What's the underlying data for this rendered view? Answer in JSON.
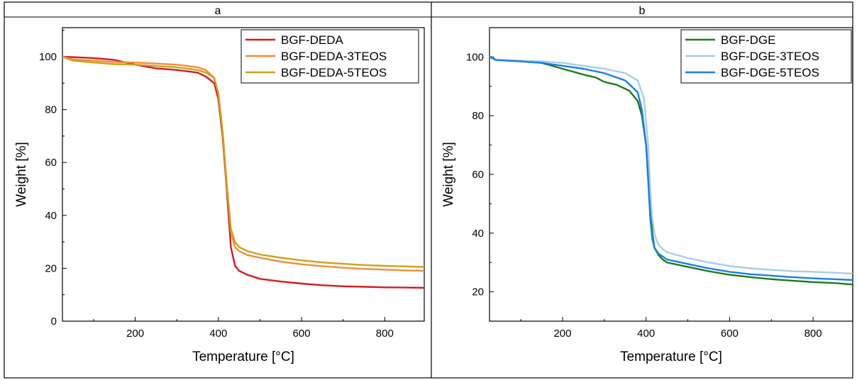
{
  "chart_data": [
    {
      "type": "line",
      "title": "a",
      "xlabel": "Temperature [°C]",
      "ylabel": "Weight [%]",
      "xlim": [
        25,
        895
      ],
      "ylim": [
        0,
        111
      ],
      "xticks": [
        200,
        400,
        600,
        800
      ],
      "yticks": [
        0,
        20,
        40,
        60,
        80,
        100
      ],
      "legend_position": "top-right",
      "series": [
        {
          "name": "BGF-DEDA",
          "color": "#d71920",
          "x": [
            25,
            100,
            150,
            200,
            250,
            300,
            350,
            370,
            390,
            400,
            410,
            420,
            430,
            440,
            450,
            470,
            500,
            550,
            600,
            650,
            700,
            750,
            800,
            850,
            895
          ],
          "y": [
            100,
            99.5,
            98.8,
            97.0,
            95.6,
            95.0,
            94.0,
            92.5,
            90.0,
            84.0,
            70.0,
            50.0,
            28.0,
            21.0,
            19.0,
            17.5,
            16.0,
            15.0,
            14.2,
            13.6,
            13.2,
            13.0,
            12.8,
            12.7,
            12.6
          ]
        },
        {
          "name": "BGF-DEDA-3TEOS",
          "color": "#f28c3a",
          "x": [
            25,
            50,
            100,
            150,
            200,
            250,
            300,
            350,
            370,
            390,
            400,
            410,
            420,
            430,
            440,
            450,
            470,
            500,
            550,
            600,
            650,
            700,
            750,
            800,
            850,
            895
          ],
          "y": [
            100,
            99.0,
            98.5,
            98.0,
            97.8,
            97.4,
            97.0,
            96.0,
            95.0,
            92.0,
            86.0,
            72.0,
            52.0,
            34.0,
            28.0,
            26.5,
            25.0,
            24.0,
            22.5,
            21.5,
            20.8,
            20.2,
            19.8,
            19.5,
            19.2,
            19.0
          ]
        },
        {
          "name": "BGF-DEDA-5TEOS",
          "color": "#c9a41a",
          "x": [
            25,
            50,
            100,
            150,
            200,
            250,
            300,
            350,
            370,
            390,
            400,
            410,
            420,
            430,
            440,
            450,
            470,
            500,
            550,
            600,
            650,
            700,
            750,
            800,
            850,
            895
          ],
          "y": [
            100,
            98.5,
            97.8,
            97.2,
            97.0,
            96.5,
            96.0,
            95.0,
            94.0,
            92.0,
            86.0,
            72.0,
            52.0,
            35.0,
            30.0,
            28.0,
            26.5,
            25.2,
            24.0,
            23.0,
            22.2,
            21.7,
            21.2,
            20.9,
            20.7,
            20.5
          ]
        }
      ]
    },
    {
      "type": "line",
      "title": "b",
      "xlabel": "Temperature [°C]",
      "ylabel": "Weight [%]",
      "xlim": [
        25,
        895
      ],
      "ylim": [
        10,
        110
      ],
      "xticks": [
        200,
        400,
        600,
        800
      ],
      "yticks": [
        20,
        40,
        60,
        80,
        100
      ],
      "legend_position": "top-right",
      "series": [
        {
          "name": "BGF-DGE",
          "color": "#1f7a1f",
          "x": [
            25,
            30,
            40,
            100,
            150,
            200,
            250,
            280,
            300,
            330,
            360,
            380,
            390,
            400,
            405,
            410,
            415,
            420,
            430,
            440,
            450,
            500,
            550,
            600,
            650,
            700,
            750,
            800,
            850,
            895
          ],
          "y": [
            100,
            100,
            99.0,
            98.5,
            98.0,
            96.0,
            94.0,
            93.0,
            91.5,
            90.5,
            88.5,
            85.0,
            80.0,
            70.0,
            60.0,
            50.0,
            40.0,
            35.0,
            32.5,
            31.0,
            30.0,
            28.5,
            27.0,
            25.8,
            25.0,
            24.3,
            23.8,
            23.3,
            23.0,
            22.5
          ]
        },
        {
          "name": "BGF-DGE-3TEOS",
          "color": "#a9cde6",
          "x": [
            25,
            30,
            40,
            100,
            150,
            200,
            250,
            300,
            350,
            380,
            395,
            405,
            410,
            415,
            420,
            425,
            430,
            440,
            450,
            500,
            550,
            600,
            650,
            700,
            750,
            800,
            850,
            895
          ],
          "y": [
            100,
            99.5,
            99.0,
            98.8,
            98.5,
            98.0,
            97.0,
            96.0,
            94.5,
            92.0,
            86.0,
            70.0,
            55.0,
            45.0,
            40.0,
            37.5,
            36.0,
            34.5,
            33.5,
            31.5,
            30.0,
            28.8,
            28.0,
            27.5,
            27.0,
            26.8,
            26.5,
            26.2
          ]
        },
        {
          "name": "BGF-DGE-5TEOS",
          "color": "#1a7fe6",
          "x": [
            25,
            30,
            40,
            100,
            150,
            200,
            250,
            300,
            350,
            380,
            390,
            400,
            405,
            410,
            415,
            420,
            430,
            440,
            450,
            500,
            550,
            600,
            650,
            700,
            750,
            800,
            850,
            895
          ],
          "y": [
            100,
            99.8,
            99.0,
            98.5,
            98.0,
            97.0,
            96.0,
            94.5,
            92.0,
            88.0,
            82.0,
            70.0,
            58.0,
            45.0,
            38.0,
            35.0,
            33.0,
            32.0,
            31.0,
            29.5,
            28.0,
            26.8,
            26.0,
            25.5,
            25.0,
            24.6,
            24.3,
            24.0
          ]
        }
      ]
    }
  ]
}
